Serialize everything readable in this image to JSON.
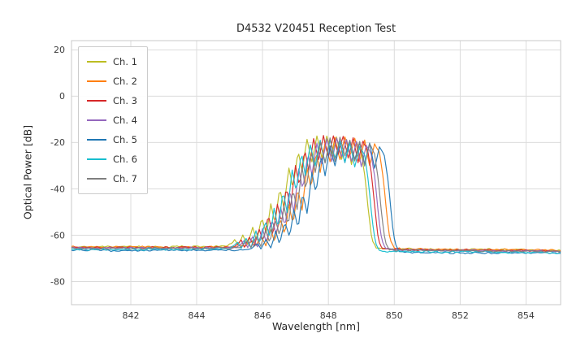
{
  "figure": {
    "title": "D4532 V20451 Reception Test",
    "xlabel": "Wavelength [nm]",
    "ylabel": "Optical Power [dB]"
  },
  "chart_data": {
    "type": "line",
    "title": "D4532 V20451 Reception Test",
    "xlabel": "Wavelength [nm]",
    "ylabel": "Optical Power [dB]",
    "xlim": [
      840.2,
      855.05
    ],
    "ylim": [
      -90,
      24
    ],
    "xticks": [
      842,
      844,
      846,
      848,
      850,
      852,
      854
    ],
    "yticks": [
      20,
      0,
      -20,
      -40,
      -60,
      -80
    ],
    "grid": true,
    "grid_color": "#dcdcdc",
    "frame_color": "#c8c8c8",
    "legend": {
      "position": "upper left",
      "entries": [
        "Ch. 1",
        "Ch. 2",
        "Ch. 3",
        "Ch. 4",
        "Ch. 5",
        "Ch. 6",
        "Ch. 7"
      ]
    },
    "description": "Seven overlaid optical reception spectra; noise floor near -65.5 dB, passband cluster between ~846 and ~849.5 nm peaking near -17.5 dB with ripple lobes on the rising edge and a sharp fall-off near 849.5 nm.",
    "floor_level_db": -65.5,
    "peak_level_db": -17.5,
    "noise": {
      "floor_amp": 0.4,
      "peak_amp": 0.5,
      "step": 0.05
    },
    "base_curve": [
      [
        840.2,
        -65.3
      ],
      [
        841.0,
        -65.4
      ],
      [
        842.0,
        -65.3
      ],
      [
        843.0,
        -65.4
      ],
      [
        844.0,
        -65.3
      ],
      [
        844.8,
        -65.2
      ],
      [
        845.2,
        -65.0
      ],
      [
        845.35,
        -63.6
      ],
      [
        845.45,
        -62.2
      ],
      [
        845.55,
        -64.8
      ],
      [
        845.7,
        -60.6
      ],
      [
        845.85,
        -64.5
      ],
      [
        846.0,
        -57.2
      ],
      [
        846.12,
        -63.0
      ],
      [
        846.28,
        -52.2
      ],
      [
        846.42,
        -60.0
      ],
      [
        846.55,
        -46.8
      ],
      [
        846.68,
        -55.2
      ],
      [
        846.82,
        -39.2
      ],
      [
        846.95,
        -48.5
      ],
      [
        847.1,
        -30.5
      ],
      [
        847.22,
        -39.5
      ],
      [
        847.38,
        -23.2
      ],
      [
        847.5,
        -32.5
      ],
      [
        847.65,
        -19.2
      ],
      [
        847.8,
        -28.2
      ],
      [
        847.95,
        -17.6
      ],
      [
        848.1,
        -26.8
      ],
      [
        848.25,
        -17.3
      ],
      [
        848.4,
        -25.2
      ],
      [
        848.55,
        -17.9
      ],
      [
        848.7,
        -27.2
      ],
      [
        848.85,
        -18.6
      ],
      [
        849.0,
        -29.2
      ],
      [
        849.15,
        -19.8
      ],
      [
        849.3,
        -24.2
      ],
      [
        849.42,
        -35.5
      ],
      [
        849.52,
        -50.5
      ],
      [
        849.62,
        -62.5
      ],
      [
        849.75,
        -65.8
      ],
      [
        850.0,
        -66.2
      ],
      [
        851.0,
        -66.3
      ],
      [
        852.0,
        -66.4
      ],
      [
        853.0,
        -66.5
      ],
      [
        854.0,
        -66.6
      ],
      [
        855.1,
        -66.8
      ]
    ],
    "series": [
      {
        "name": "Ch. 1",
        "color": "#bcbd22",
        "dx": -0.3,
        "dy": 0.0,
        "floor_dy": 0.3,
        "seed": 11
      },
      {
        "name": "Ch. 2",
        "color": "#ff7f0e",
        "dx": 0.25,
        "dy": -0.5,
        "floor_dy": 0.2,
        "seed": 22
      },
      {
        "name": "Ch. 3",
        "color": "#d62728",
        "dx": -0.1,
        "dy": 0.5,
        "floor_dy": 0.0,
        "seed": 33
      },
      {
        "name": "Ch. 4",
        "color": "#9467bd",
        "dx": 0.0,
        "dy": -1.0,
        "floor_dy": -0.2,
        "seed": 44
      },
      {
        "name": "Ch. 5",
        "color": "#1f77b4",
        "dx": 0.4,
        "dy": -2.0,
        "floor_dy": -1.2,
        "seed": 55
      },
      {
        "name": "Ch. 6",
        "color": "#17becf",
        "dx": -0.2,
        "dy": -1.5,
        "floor_dy": -0.8,
        "seed": 66
      },
      {
        "name": "Ch. 7",
        "color": "#7f7f7f",
        "dx": 0.1,
        "dy": -0.8,
        "floor_dy": -0.3,
        "seed": 77
      }
    ]
  }
}
